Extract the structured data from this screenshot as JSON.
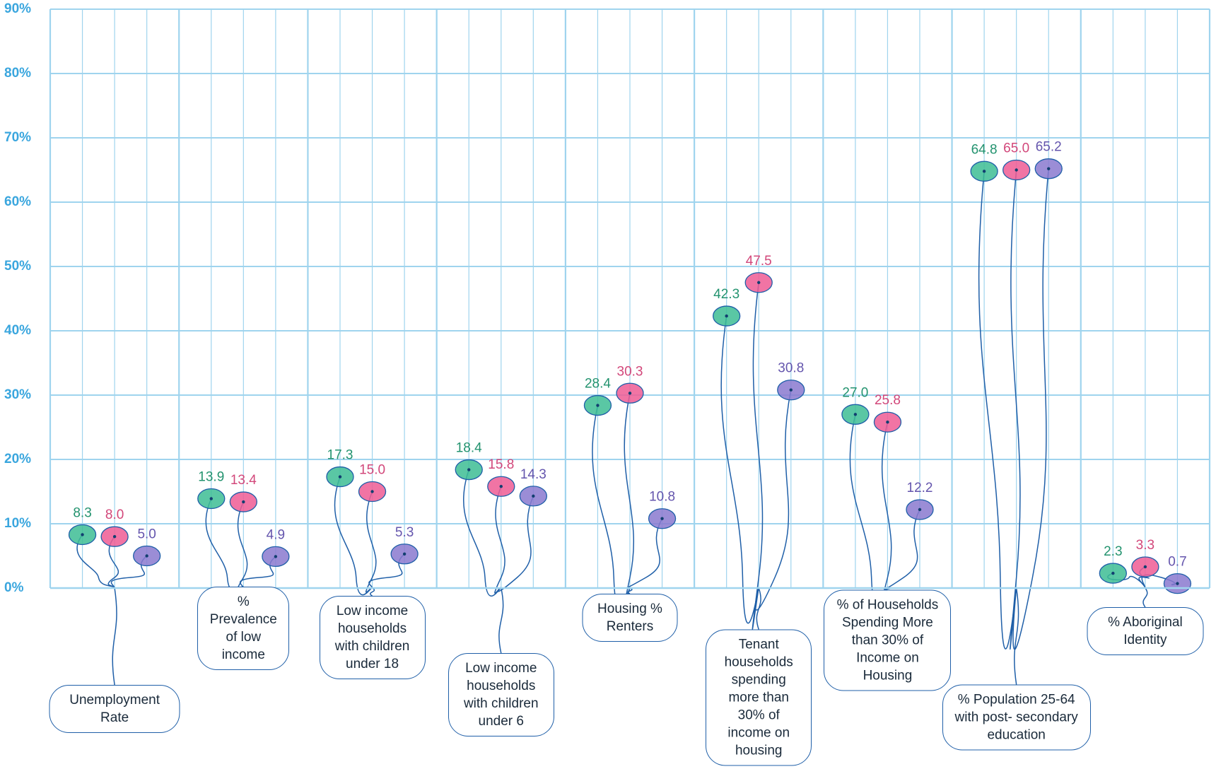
{
  "chart_data": {
    "type": "lollipop",
    "categories": [
      "Unemployment Rate",
      "% Prevalence of low income",
      "Low income households with children under 18",
      "Low income households with children under 6",
      "Housing % Renters",
      "Tenant households spending more than 30% of income on housing",
      "% of Households Spending More than 30% of Income on Housing",
      "% Population 25-64 with post- secondary education",
      "% Aboriginal Identity"
    ],
    "series": [
      {
        "color": "#23936f",
        "fill": "#3dbd94",
        "values": [
          8.3,
          13.9,
          17.3,
          18.4,
          28.4,
          42.3,
          27.0,
          64.8,
          2.3
        ],
        "value_labels": [
          "8.3",
          "13.9",
          "17.3",
          "18.4",
          "28.4",
          "42.3",
          "27.0",
          "64.8",
          "2.3"
        ]
      },
      {
        "color": "#d2477a",
        "fill": "#ee5c94",
        "values": [
          8.0,
          13.4,
          15.0,
          15.8,
          30.3,
          47.5,
          25.8,
          65.0,
          3.3
        ],
        "value_labels": [
          "8.0",
          "13.4",
          "15.0",
          "15.8",
          "30.3",
          "47.5",
          "25.8",
          "65.0",
          "3.3"
        ]
      },
      {
        "color": "#6455ad",
        "fill": "#8a79cf",
        "values": [
          5.0,
          4.9,
          5.3,
          14.3,
          10.8,
          30.8,
          12.2,
          65.2,
          0.7
        ],
        "value_labels": [
          "5.0",
          "4.9",
          "5.3",
          "14.3",
          "10.8",
          "30.8",
          "12.2",
          "65.2",
          "0.7"
        ]
      }
    ],
    "ylim": [
      0,
      90
    ],
    "yticks": [
      {
        "value": 0,
        "label": "0%"
      },
      {
        "value": 10,
        "label": "10%"
      },
      {
        "value": 20,
        "label": "20%"
      },
      {
        "value": 30,
        "label": "30%"
      },
      {
        "value": 40,
        "label": "40%"
      },
      {
        "value": 50,
        "label": "50%"
      },
      {
        "value": 60,
        "label": "60%"
      },
      {
        "value": 70,
        "label": "70%"
      },
      {
        "value": 80,
        "label": "80%"
      },
      {
        "value": 90,
        "label": "90%"
      }
    ],
    "grid": true
  }
}
